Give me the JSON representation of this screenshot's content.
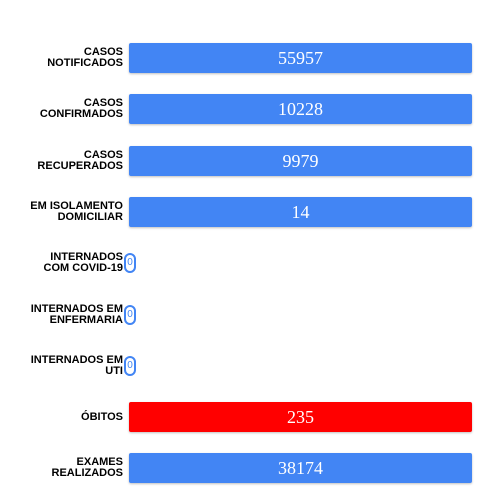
{
  "rows": [
    {
      "label": [
        "CASOS",
        "NOTIFICADOS"
      ],
      "value": 55957,
      "color": "#4285f4"
    },
    {
      "label": [
        "CASOS",
        "CONFIRMADOS"
      ],
      "value": 10228,
      "color": "#4285f4"
    },
    {
      "label": [
        "CASOS",
        "RECUPERADOS"
      ],
      "value": 9979,
      "color": "#4285f4"
    },
    {
      "label": [
        "EM ISOLAMENTO",
        "DOMICILIAR"
      ],
      "value": 14,
      "color": "#4285f4"
    },
    {
      "label": [
        "INTERNADOS",
        "COM COVID-19"
      ],
      "value": 0,
      "color": "#4285f4"
    },
    {
      "label": [
        "INTERNADOS EM",
        "ENFERMARIA"
      ],
      "value": 0,
      "color": "#4285f4"
    },
    {
      "label": [
        "INTERNADOS EM",
        "UTI"
      ],
      "value": 0,
      "color": "#4285f4"
    },
    {
      "label": [
        "ÓBITOS"
      ],
      "value": 235,
      "color": "#ff0000"
    },
    {
      "label": [
        "EXAMES",
        "REALIZADOS"
      ],
      "value": 38174,
      "color": "#4285f4"
    }
  ]
}
